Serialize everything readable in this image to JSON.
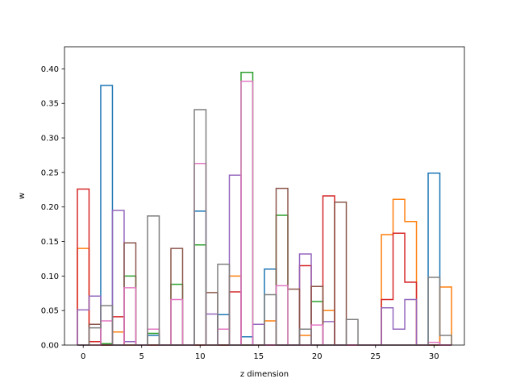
{
  "chart_data": {
    "type": "histogram-step",
    "title": "",
    "xlabel": "z dimension",
    "ylabel": "w",
    "xlim": [
      -1.6,
      32.6
    ],
    "ylim": [
      0,
      0.432
    ],
    "grid": false,
    "x_ticks": [
      0,
      5,
      10,
      15,
      20,
      25,
      30
    ],
    "y_ticks": [
      0.0,
      0.05,
      0.1,
      0.15,
      0.2,
      0.25,
      0.3,
      0.35,
      0.4
    ],
    "x_tick_labels": [
      "0",
      "5",
      "10",
      "15",
      "20",
      "25",
      "30"
    ],
    "y_tick_labels": [
      "0.00",
      "0.05",
      "0.10",
      "0.15",
      "0.20",
      "0.25",
      "0.30",
      "0.35",
      "0.40"
    ],
    "bins": [
      0,
      1,
      2,
      3,
      4,
      5,
      6,
      7,
      8,
      9,
      10,
      11,
      12,
      13,
      14,
      15,
      16,
      17,
      18,
      19,
      20,
      21,
      22,
      23,
      24,
      25,
      26,
      27,
      28,
      29,
      30,
      31
    ],
    "series": [
      {
        "color": "#1f77b4",
        "values": [
          0.0,
          0.0,
          0.376,
          0.0,
          0.0,
          0.0,
          0.014,
          0.0,
          0.0,
          0.0,
          0.194,
          0.0,
          0.044,
          0.0,
          0.012,
          0.0,
          0.11,
          0.0,
          0.0,
          0.0,
          0.0,
          0.0,
          0.0,
          0.0,
          0.0,
          0.0,
          0.0,
          0.0,
          0.0,
          0.0,
          0.249,
          0.0
        ]
      },
      {
        "color": "#ff7f0e",
        "values": [
          0.14,
          0.0,
          0.0,
          0.019,
          0.0,
          0.0,
          0.0,
          0.0,
          0.0,
          0.0,
          0.0,
          0.0,
          0.0,
          0.1,
          0.0,
          0.0,
          0.035,
          0.0,
          0.0,
          0.014,
          0.0,
          0.05,
          0.0,
          0.0,
          0.0,
          0.0,
          0.16,
          0.211,
          0.179,
          0.0,
          0.0,
          0.084
        ]
      },
      {
        "color": "#2ca02c",
        "values": [
          0.0,
          0.0,
          0.002,
          0.0,
          0.1,
          0.0,
          0.017,
          0.0,
          0.088,
          0.0,
          0.145,
          0.0,
          0.0,
          0.0,
          0.395,
          0.0,
          0.0,
          0.188,
          0.0,
          0.0,
          0.063,
          0.0,
          0.0,
          0.0,
          0.0,
          0.0,
          0.0,
          0.0,
          0.0,
          0.0,
          0.0,
          0.0
        ]
      },
      {
        "color": "#d62728",
        "values": [
          0.226,
          0.005,
          0.0,
          0.041,
          0.0,
          0.0,
          0.0,
          0.0,
          0.0,
          0.0,
          0.0,
          0.0,
          0.0,
          0.077,
          0.0,
          0.0,
          0.0,
          0.0,
          0.0,
          0.115,
          0.0,
          0.216,
          0.0,
          0.0,
          0.0,
          0.0,
          0.066,
          0.162,
          0.091,
          0.0,
          0.0,
          0.0
        ]
      },
      {
        "color": "#9467bd",
        "values": [
          0.051,
          0.071,
          0.0,
          0.195,
          0.005,
          0.0,
          0.0,
          0.0,
          0.0,
          0.0,
          0.0,
          0.045,
          0.0,
          0.246,
          0.0,
          0.03,
          0.0,
          0.0,
          0.0,
          0.132,
          0.0,
          0.034,
          0.0,
          0.0,
          0.0,
          0.0,
          0.054,
          0.023,
          0.066,
          0.0,
          0.0,
          0.0
        ]
      },
      {
        "color": "#8c564b",
        "values": [
          0.0,
          0.03,
          0.0,
          0.0,
          0.148,
          0.0,
          0.0,
          0.0,
          0.14,
          0.0,
          0.0,
          0.076,
          0.0,
          0.0,
          0.0,
          0.0,
          0.0,
          0.227,
          0.081,
          0.0,
          0.085,
          0.0,
          0.207,
          0.0,
          0.0,
          0.0,
          0.0,
          0.0,
          0.0,
          0.0,
          0.0,
          0.0
        ]
      },
      {
        "color": "#e377c2",
        "values": [
          0.0,
          0.0,
          0.035,
          0.0,
          0.083,
          0.0,
          0.023,
          0.0,
          0.066,
          0.0,
          0.263,
          0.0,
          0.023,
          0.0,
          0.382,
          0.0,
          0.0,
          0.086,
          0.0,
          0.0,
          0.029,
          0.0,
          0.0,
          0.0,
          0.0,
          0.0,
          0.0,
          0.0,
          0.0,
          0.0,
          0.004,
          0.0
        ]
      },
      {
        "color": "#7f7f7f",
        "values": [
          0.0,
          0.025,
          0.057,
          0.0,
          0.0,
          0.0,
          0.187,
          0.0,
          0.0,
          0.0,
          0.341,
          0.0,
          0.117,
          0.0,
          0.0,
          0.0,
          0.073,
          0.0,
          0.0,
          0.023,
          0.0,
          0.0,
          0.0,
          0.037,
          0.0,
          0.0,
          0.0,
          0.0,
          0.0,
          0.0,
          0.098,
          0.014
        ]
      }
    ]
  }
}
